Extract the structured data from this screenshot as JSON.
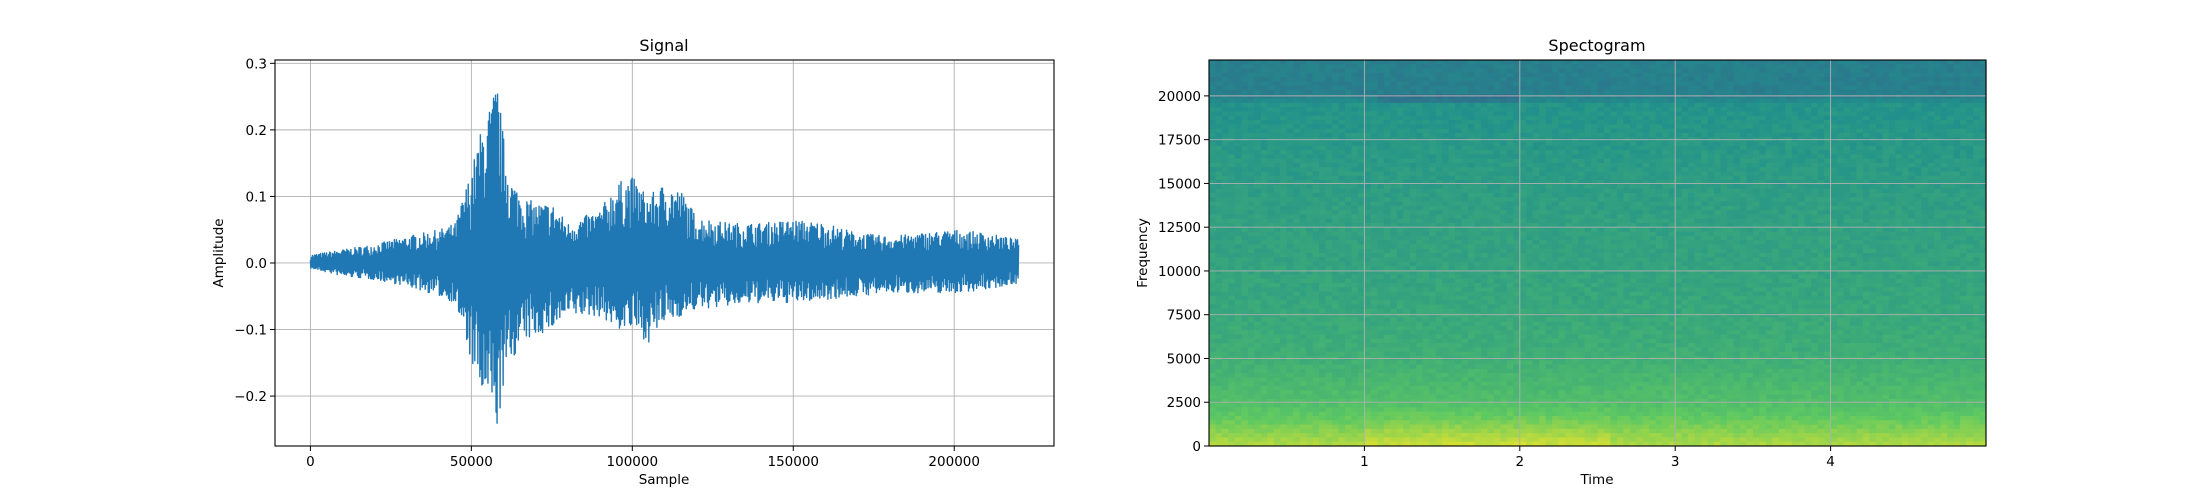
{
  "chart_data": [
    {
      "type": "line",
      "title": "Signal",
      "xlabel": "Sample",
      "ylabel": "Amplitude",
      "xlim": [
        -11000,
        231000
      ],
      "ylim": [
        -0.275,
        0.305
      ],
      "xticks": [
        0,
        50000,
        100000,
        150000,
        200000
      ],
      "xtick_labels": [
        "0",
        "50000",
        "100000",
        "150000",
        "200000"
      ],
      "yticks": [
        -0.2,
        -0.1,
        0.0,
        0.1,
        0.2,
        0.3
      ],
      "ytick_labels": [
        "−0.2",
        "−0.1",
        "0.0",
        "0.1",
        "0.2",
        "0.3"
      ],
      "grid": true,
      "color": "#1f77b4",
      "envelope": {
        "x": [
          0,
          10000,
          20000,
          30000,
          40000,
          45000,
          50000,
          53000,
          56000,
          58000,
          60000,
          62000,
          66000,
          70000,
          75000,
          80000,
          90000,
          95000,
          100000,
          105000,
          110000,
          115000,
          120000,
          130000,
          140000,
          150000,
          160000,
          170000,
          180000,
          190000,
          200000,
          210000,
          220000
        ],
        "upper": [
          0.012,
          0.02,
          0.028,
          0.04,
          0.05,
          0.06,
          0.14,
          0.2,
          0.24,
          0.275,
          0.19,
          0.13,
          0.1,
          0.09,
          0.09,
          0.06,
          0.08,
          0.12,
          0.13,
          0.1,
          0.12,
          0.11,
          0.07,
          0.06,
          0.06,
          0.065,
          0.06,
          0.045,
          0.04,
          0.045,
          0.05,
          0.045,
          0.035
        ],
        "lower": [
          -0.008,
          -0.02,
          -0.025,
          -0.035,
          -0.05,
          -0.06,
          -0.15,
          -0.2,
          -0.22,
          -0.25,
          -0.19,
          -0.15,
          -0.12,
          -0.11,
          -0.1,
          -0.08,
          -0.08,
          -0.1,
          -0.1,
          -0.12,
          -0.09,
          -0.08,
          -0.07,
          -0.065,
          -0.06,
          -0.06,
          -0.055,
          -0.05,
          -0.045,
          -0.045,
          -0.045,
          -0.04,
          -0.03
        ]
      }
    },
    {
      "type": "heatmap",
      "title": "Spectogram",
      "xlabel": "Time",
      "ylabel": "Frequency",
      "xlim": [
        0,
        5
      ],
      "ylim": [
        0,
        22050
      ],
      "xticks": [
        1,
        2,
        3,
        4
      ],
      "xtick_labels": [
        "1",
        "2",
        "3",
        "4"
      ],
      "yticks": [
        0,
        2500,
        5000,
        7500,
        10000,
        12500,
        15000,
        17500,
        20000
      ],
      "ytick_labels": [
        "0",
        "2500",
        "5000",
        "7500",
        "10000",
        "12500",
        "15000",
        "17500",
        "20000"
      ],
      "grid": true,
      "colormap": [
        "#440154",
        "#3b528b",
        "#21918c",
        "#5ec962",
        "#fde725"
      ],
      "band_profile": {
        "freq": [
          0,
          500,
          1500,
          2500,
          4000,
          5000,
          7500,
          10000,
          12500,
          15000,
          17500,
          19500,
          20000,
          22050
        ],
        "level": [
          0.88,
          0.84,
          0.76,
          0.7,
          0.66,
          0.63,
          0.6,
          0.58,
          0.57,
          0.55,
          0.53,
          0.51,
          0.43,
          0.43
        ]
      }
    }
  ]
}
